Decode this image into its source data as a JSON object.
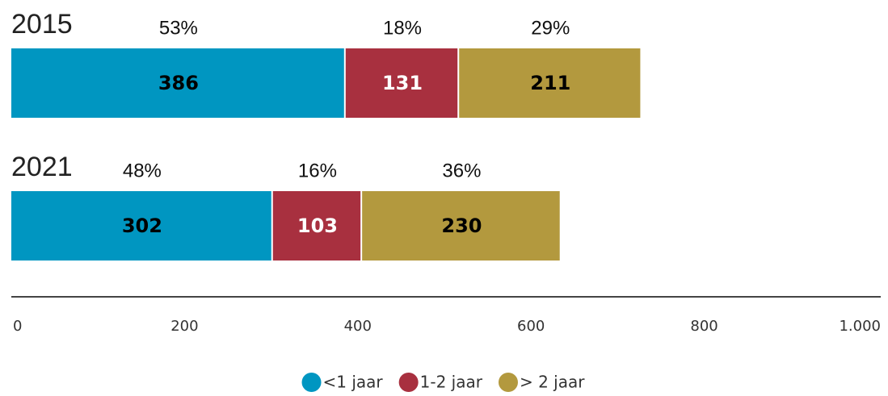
{
  "chart_data": {
    "type": "stacked-bar-horizontal",
    "categories": [
      "2015",
      "2021"
    ],
    "series": [
      {
        "name": "<1 jaar",
        "color": "#0096c1",
        "label_color": "#000000",
        "values": [
          386,
          302
        ],
        "percentages": [
          53,
          48
        ],
        "percentage_labels": [
          "53%",
          "48%"
        ]
      },
      {
        "name": "1-2 jaar",
        "color": "#a8303f",
        "label_color": "#ffffff",
        "values": [
          131,
          103
        ],
        "percentages": [
          18,
          16
        ],
        "percentage_labels": [
          "18%",
          "16%"
        ]
      },
      {
        "name": "> 2 jaar",
        "color": "#b3993e",
        "label_color": "#000000",
        "values": [
          211,
          230
        ],
        "percentages": [
          29,
          36
        ],
        "percentage_labels": [
          "29%",
          "36%"
        ]
      }
    ],
    "xlim": [
      0,
      1000
    ],
    "xticks": [
      0,
      200,
      400,
      600,
      800,
      {
        "value": 1000,
        "label": "1.000"
      }
    ],
    "legend": "bottom"
  }
}
